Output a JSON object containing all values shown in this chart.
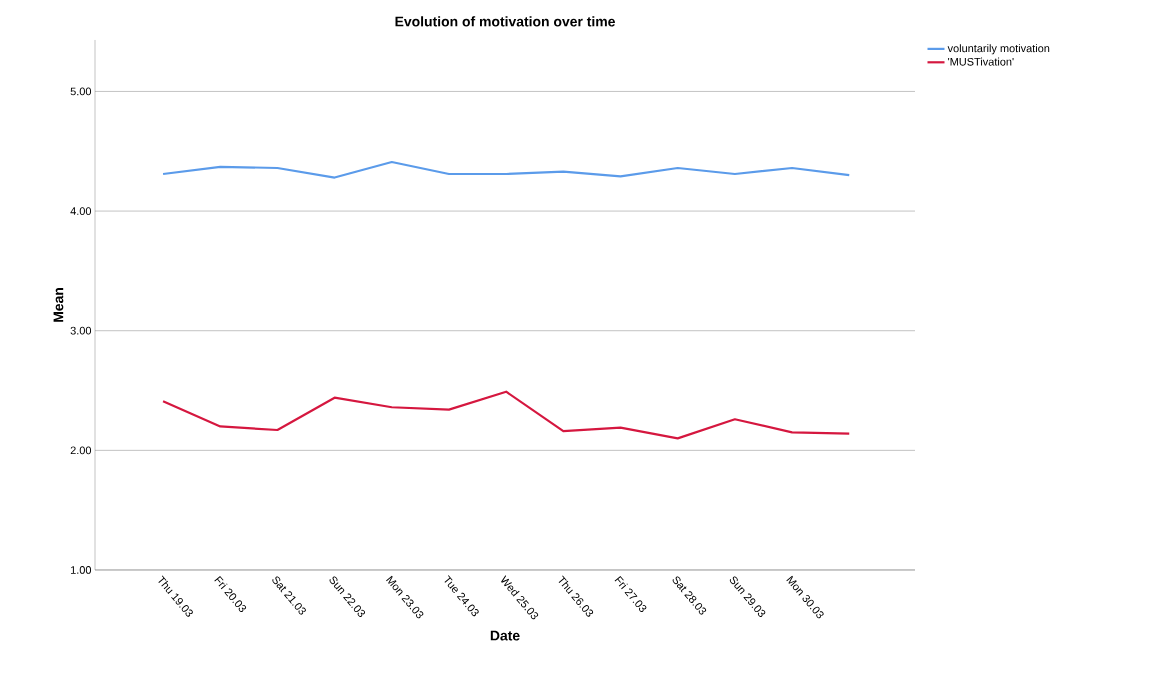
{
  "chart_data": {
    "type": "line",
    "title": "Evolution of motivation over time",
    "xlabel": "Date",
    "ylabel": "Mean",
    "categories": [
      "Thu 19.03",
      "Fri 20.03",
      "Sat 21.03",
      "Sun 22.03",
      "Mon 23.03",
      "Tue 24.03",
      "Wed 25.03",
      "Thu 26.03",
      "Fri 27.03",
      "Sat 28.03",
      "Sun 29.03",
      "Mon 30.03",
      null
    ],
    "series": [
      {
        "name": "voluntarily motivation",
        "color": "#5b9bea",
        "values": [
          4.31,
          4.37,
          4.36,
          4.28,
          4.41,
          4.31,
          4.31,
          4.33,
          4.29,
          4.36,
          4.31,
          4.36,
          4.3
        ]
      },
      {
        "name": "'MUSTivation'",
        "color": "#d5173f",
        "values": [
          2.41,
          2.2,
          2.17,
          2.44,
          2.36,
          2.34,
          2.49,
          2.16,
          2.19,
          2.1,
          2.26,
          2.15,
          2.14
        ]
      }
    ],
    "ylim": [
      1,
      5.43
    ],
    "yticks": [
      {
        "value": 1,
        "label": "1.00"
      },
      {
        "value": 2,
        "label": "2.00"
      },
      {
        "value": 3,
        "label": "3.00"
      },
      {
        "value": 4,
        "label": "4.00"
      },
      {
        "value": 5,
        "label": "5.00"
      }
    ],
    "grid": "y",
    "legend": "top right",
    "marker": "none",
    "line_style": "solid"
  }
}
